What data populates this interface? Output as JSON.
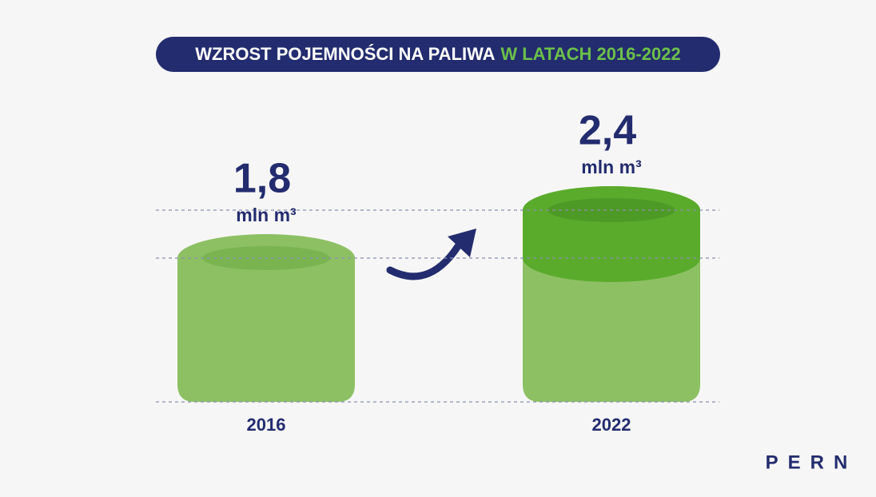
{
  "chart_data": {
    "type": "cylinder",
    "title": "WZROST POJEMNOŚCI NA PALIWA",
    "subtitle": "W LATACH 2016-2022",
    "categories": [
      "2016",
      "2022"
    ],
    "values": [
      1.8,
      2.4
    ],
    "value_labels": [
      "1,8",
      "2,4"
    ],
    "unit": "mln m³",
    "color": "#8dc063",
    "increase_color": "#5aab2c",
    "ylim": [
      0,
      3
    ],
    "guides": true
  },
  "logo": "PERN"
}
